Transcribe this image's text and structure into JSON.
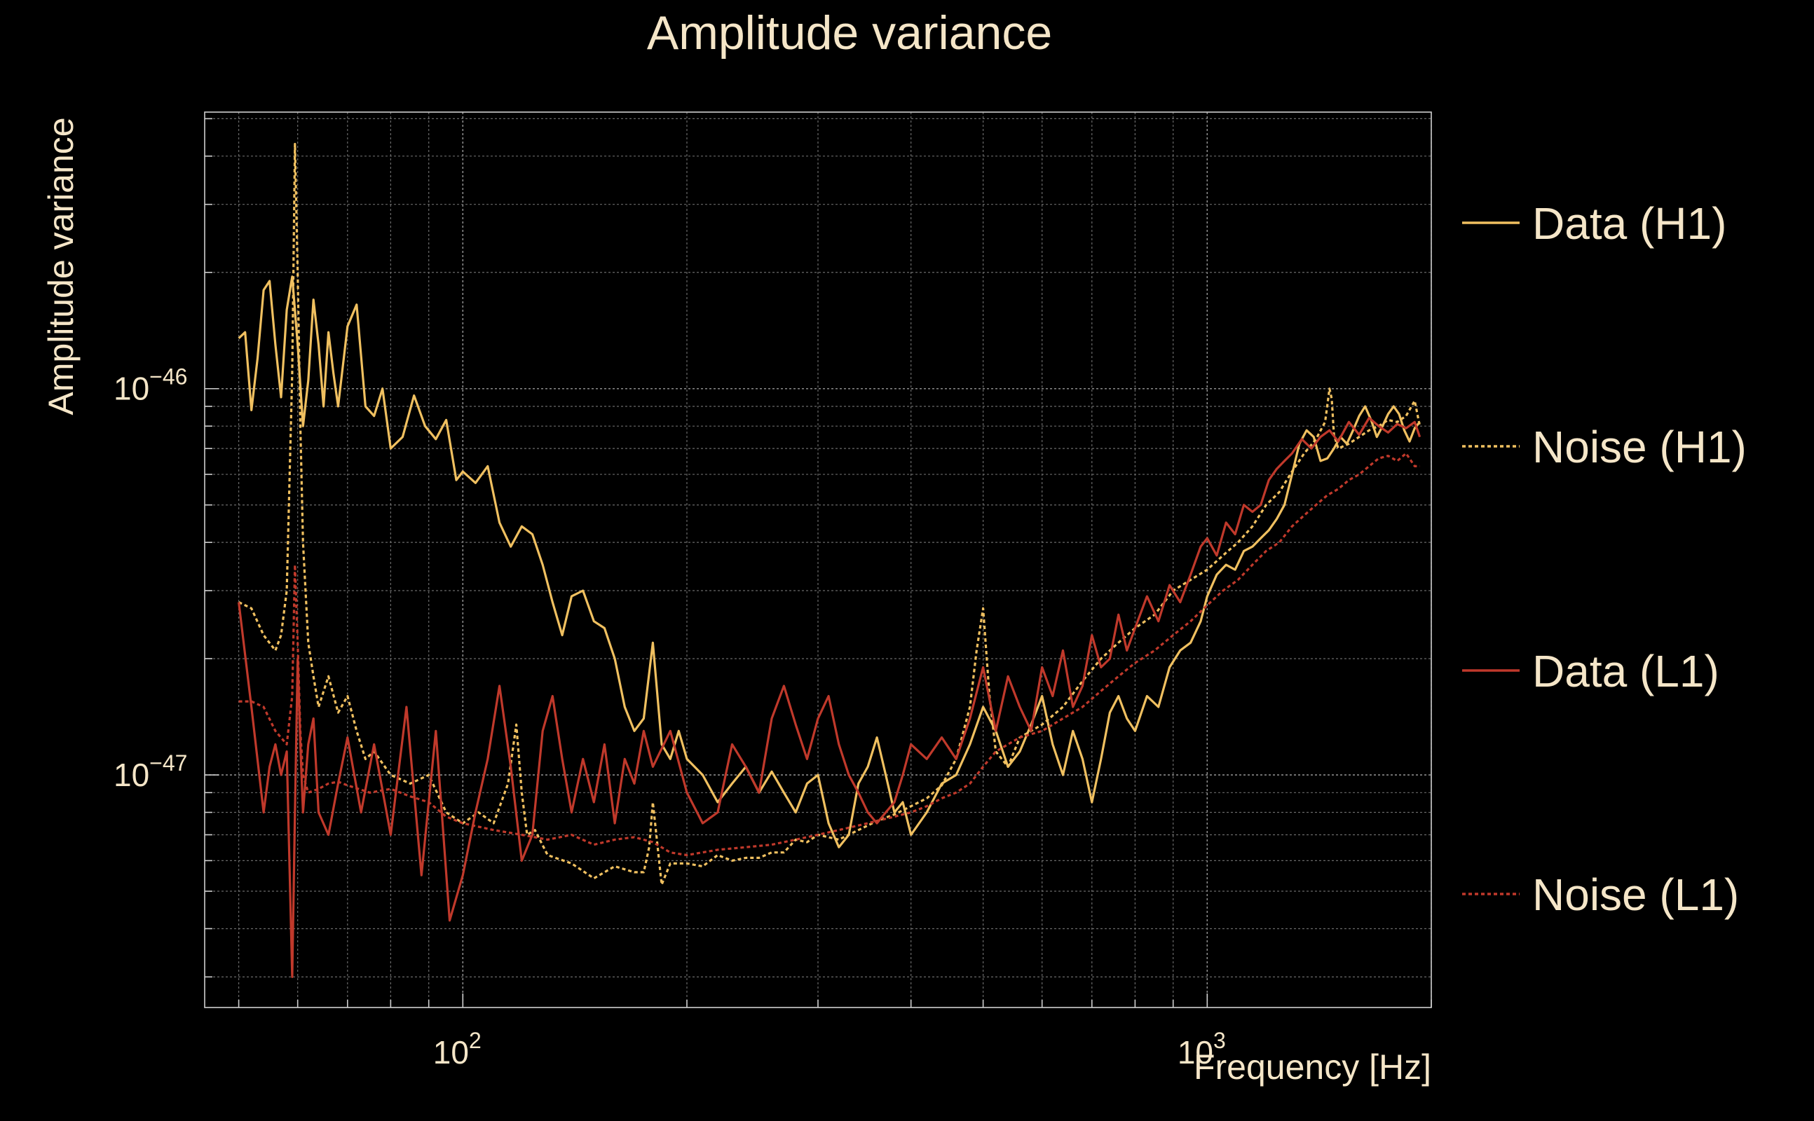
{
  "chart_data": {
    "type": "line",
    "title": "Amplitude variance",
    "xlabel": "Frequency [Hz]",
    "ylabel": "Amplitude variance",
    "x_scale": "log",
    "y_scale": "log",
    "xlim": [
      45,
      2000
    ],
    "ylim": [
      2.5e-48,
      5.2e-46
    ],
    "grid": true,
    "legend_position": "right",
    "x_ticks": [
      {
        "value": 100,
        "base": "10",
        "exp": "2"
      },
      {
        "value": 1000,
        "base": "10",
        "exp": "3"
      }
    ],
    "y_ticks": [
      {
        "value": 1e-47,
        "base": "10",
        "exp": "−47"
      },
      {
        "value": 1e-46,
        "base": "10",
        "exp": "−46"
      }
    ],
    "series": [
      {
        "name": "Data (H1)",
        "color": "#f0c060",
        "dash": "solid",
        "x": [
          50,
          51,
          52,
          53,
          54,
          55,
          56,
          57,
          58,
          59,
          60,
          61,
          62,
          63,
          64,
          65,
          66,
          67,
          68,
          70,
          72,
          74,
          76,
          78,
          80,
          83,
          86,
          89,
          92,
          95,
          98,
          100,
          104,
          108,
          112,
          116,
          120,
          124,
          128,
          132,
          136,
          140,
          145,
          150,
          155,
          160,
          165,
          170,
          175,
          180,
          185,
          190,
          195,
          200,
          210,
          220,
          230,
          240,
          250,
          260,
          270,
          280,
          290,
          300,
          310,
          320,
          330,
          340,
          350,
          360,
          370,
          380,
          390,
          400,
          420,
          440,
          460,
          480,
          500,
          520,
          540,
          560,
          580,
          600,
          620,
          640,
          660,
          680,
          700,
          720,
          740,
          760,
          780,
          800,
          830,
          860,
          890,
          920,
          950,
          980,
          1000,
          1030,
          1060,
          1090,
          1120,
          1150,
          1180,
          1210,
          1240,
          1270,
          1300,
          1330,
          1360,
          1390,
          1420,
          1450,
          1480,
          1510,
          1540,
          1570,
          1600,
          1630,
          1660,
          1690,
          1720,
          1750,
          1780,
          1810,
          1840,
          1870,
          1900,
          1930
        ],
        "y": [
          1.35e-46,
          1.4e-46,
          8.8e-47,
          1.2e-46,
          1.8e-46,
          1.9e-46,
          1.3e-46,
          9.5e-47,
          1.6e-46,
          1.95e-46,
          1.3e-46,
          8e-47,
          1.05e-46,
          1.7e-46,
          1.3e-46,
          9e-47,
          1.4e-46,
          1.1e-46,
          9e-47,
          1.45e-46,
          1.65e-46,
          9e-47,
          8.5e-47,
          1e-46,
          7e-47,
          7.5e-47,
          9.6e-47,
          8e-47,
          7.4e-47,
          8.3e-47,
          5.8e-47,
          6.1e-47,
          5.7e-47,
          6.3e-47,
          4.5e-47,
          3.9e-47,
          4.4e-47,
          4.2e-47,
          3.5e-47,
          2.8e-47,
          2.3e-47,
          2.9e-47,
          3e-47,
          2.5e-47,
          2.4e-47,
          2e-47,
          1.5e-47,
          1.3e-47,
          1.4e-47,
          2.2e-47,
          1.2e-47,
          1.1e-47,
          1.3e-47,
          1.1e-47,
          1e-47,
          8.5e-48,
          9.5e-48,
          1.05e-47,
          9e-48,
          1.02e-47,
          9e-48,
          8e-48,
          9.5e-48,
          1e-47,
          7.5e-48,
          6.5e-48,
          7e-48,
          9.5e-48,
          1.05e-47,
          1.25e-47,
          1e-47,
          8e-48,
          8.5e-48,
          7e-48,
          8e-48,
          9.5e-48,
          1e-47,
          1.2e-47,
          1.5e-47,
          1.3e-47,
          1.05e-47,
          1.15e-47,
          1.35e-47,
          1.6e-47,
          1.2e-47,
          1e-47,
          1.3e-47,
          1.1e-47,
          8.5e-48,
          1.1e-47,
          1.45e-47,
          1.6e-47,
          1.4e-47,
          1.3e-47,
          1.6e-47,
          1.5e-47,
          1.9e-47,
          2.1e-47,
          2.2e-47,
          2.5e-47,
          2.9e-47,
          3.3e-47,
          3.5e-47,
          3.4e-47,
          3.8e-47,
          3.9e-47,
          4.1e-47,
          4.3e-47,
          4.6e-47,
          5e-47,
          6e-47,
          7.2e-47,
          7.8e-47,
          7.5e-47,
          6.5e-47,
          6.6e-47,
          7e-47,
          7.5e-47,
          7.2e-47,
          7.8e-47,
          8.5e-47,
          9e-47,
          8.3e-47,
          7.5e-47,
          8e-47,
          8.6e-47,
          9e-47,
          8.6e-47,
          7.8e-47,
          7.3e-47,
          7.9e-47,
          8.2e-47
        ]
      },
      {
        "name": "Noise (H1)",
        "color": "#f0c060",
        "dash": "dotted",
        "x": [
          50,
          52,
          54,
          56,
          57,
          58,
          59,
          59.5,
          60,
          60.5,
          61,
          62,
          63,
          64,
          66,
          68,
          70,
          72,
          74,
          76,
          80,
          85,
          90,
          95,
          100,
          105,
          110,
          115,
          118,
          120,
          122,
          125,
          130,
          140,
          150,
          160,
          170,
          175,
          178,
          180,
          185,
          190,
          200,
          210,
          220,
          230,
          240,
          250,
          260,
          270,
          280,
          290,
          300,
          320,
          340,
          360,
          380,
          400,
          420,
          440,
          460,
          480,
          490,
          500,
          510,
          520,
          540,
          560,
          600,
          640,
          680,
          720,
          760,
          800,
          850,
          900,
          950,
          1000,
          1050,
          1100,
          1150,
          1200,
          1250,
          1300,
          1350,
          1400,
          1440,
          1460,
          1470,
          1480,
          1500,
          1550,
          1600,
          1650,
          1700,
          1750,
          1800,
          1850,
          1900,
          1930
        ],
        "y": [
          2.8e-47,
          2.7e-47,
          2.3e-47,
          2.1e-47,
          2.3e-47,
          3e-47,
          1.1e-46,
          4.3e-46,
          2e-46,
          8e-47,
          4e-47,
          2.2e-47,
          1.8e-47,
          1.5e-47,
          1.8e-47,
          1.45e-47,
          1.6e-47,
          1.3e-47,
          1.1e-47,
          1.15e-47,
          1e-47,
          9.5e-48,
          1e-47,
          8e-48,
          7.5e-48,
          8e-48,
          7.5e-48,
          9.5e-48,
          1.35e-47,
          9e-48,
          7e-48,
          7.2e-48,
          6.2e-48,
          5.9e-48,
          5.4e-48,
          5.8e-48,
          5.6e-48,
          5.6e-48,
          6.5e-48,
          8.5e-48,
          5.2e-48,
          5.9e-48,
          5.9e-48,
          5.8e-48,
          6.2e-48,
          6e-48,
          6.1e-48,
          6.1e-48,
          6.3e-48,
          6.3e-48,
          6.8e-48,
          6.7e-48,
          7e-48,
          6.8e-48,
          7.2e-48,
          7.6e-48,
          7.9e-48,
          8.3e-48,
          8.7e-48,
          9.4e-48,
          1.1e-47,
          1.5e-47,
          2.1e-47,
          2.7e-47,
          1.6e-47,
          1.15e-47,
          1.05e-47,
          1.25e-47,
          1.35e-47,
          1.5e-47,
          1.75e-47,
          2e-47,
          2.2e-47,
          2.4e-47,
          2.6e-47,
          3e-47,
          3.2e-47,
          3.4e-47,
          3.7e-47,
          4e-47,
          4.4e-47,
          5e-47,
          5.4e-47,
          6.1e-47,
          6.8e-47,
          7.4e-47,
          8.2e-47,
          1e-46,
          9.4e-47,
          7.6e-47,
          7e-47,
          7.2e-47,
          7.5e-47,
          7.8e-47,
          8e-47,
          8.3e-47,
          8.2e-47,
          8.5e-47,
          9.3e-47,
          8e-47
        ]
      },
      {
        "name": "Data (L1)",
        "color": "#c0392b",
        "dash": "solid",
        "x": [
          50,
          52,
          54,
          55,
          56,
          57,
          58,
          59,
          59.5,
          60,
          60.5,
          61,
          62,
          63,
          64,
          66,
          68,
          70,
          73,
          76,
          80,
          84,
          88,
          92,
          96,
          100,
          104,
          108,
          112,
          116,
          120,
          124,
          128,
          132,
          136,
          140,
          145,
          150,
          155,
          160,
          165,
          170,
          175,
          180,
          190,
          200,
          210,
          220,
          230,
          240,
          250,
          260,
          270,
          280,
          290,
          300,
          310,
          320,
          330,
          340,
          350,
          360,
          370,
          380,
          390,
          400,
          420,
          440,
          460,
          480,
          500,
          520,
          540,
          560,
          580,
          600,
          620,
          640,
          660,
          680,
          700,
          720,
          740,
          760,
          780,
          800,
          830,
          860,
          890,
          920,
          950,
          980,
          1000,
          1030,
          1060,
          1090,
          1120,
          1150,
          1180,
          1210,
          1240,
          1270,
          1300,
          1340,
          1380,
          1420,
          1460,
          1500,
          1550,
          1600,
          1650,
          1700,
          1750,
          1800,
          1850,
          1900,
          1930
        ],
        "y": [
          2.8e-47,
          1.5e-47,
          8e-48,
          1.05e-47,
          1.2e-47,
          1e-47,
          1.15e-47,
          3e-48,
          8e-48,
          2e-47,
          1.2e-47,
          8e-48,
          1.2e-47,
          1.4e-47,
          8e-48,
          7e-48,
          9.5e-48,
          1.25e-47,
          8e-48,
          1.2e-47,
          7e-48,
          1.5e-47,
          5.5e-48,
          1.3e-47,
          4.2e-48,
          5.5e-48,
          8e-48,
          1.1e-47,
          1.7e-47,
          1.05e-47,
          6e-48,
          7e-48,
          1.3e-47,
          1.6e-47,
          1.1e-47,
          8e-48,
          1.1e-47,
          8.5e-48,
          1.2e-47,
          7.5e-48,
          1.1e-47,
          9.5e-48,
          1.3e-47,
          1.05e-47,
          1.3e-47,
          9e-48,
          7.5e-48,
          8e-48,
          1.2e-47,
          1.05e-47,
          9e-48,
          1.4e-47,
          1.7e-47,
          1.35e-47,
          1.1e-47,
          1.4e-47,
          1.6e-47,
          1.2e-47,
          1e-47,
          9e-48,
          8e-48,
          7.5e-48,
          8e-48,
          8.5e-48,
          1e-47,
          1.2e-47,
          1.1e-47,
          1.25e-47,
          1.1e-47,
          1.4e-47,
          1.9e-47,
          1.3e-47,
          1.8e-47,
          1.5e-47,
          1.3e-47,
          1.9e-47,
          1.6e-47,
          2.1e-47,
          1.5e-47,
          1.7e-47,
          2.3e-47,
          1.9e-47,
          2e-47,
          2.6e-47,
          2.1e-47,
          2.4e-47,
          2.9e-47,
          2.5e-47,
          3.1e-47,
          2.8e-47,
          3.3e-47,
          3.9e-47,
          4.1e-47,
          3.7e-47,
          4.5e-47,
          4.2e-47,
          5e-47,
          4.8e-47,
          5e-47,
          5.8e-47,
          6.2e-47,
          6.5e-47,
          6.8e-47,
          7.4e-47,
          7e-47,
          7.5e-47,
          7.8e-47,
          7.3e-47,
          8.2e-47,
          7.6e-47,
          8.4e-47,
          8e-47,
          7.7e-47,
          8.1e-47,
          7.9e-47,
          8.2e-47,
          7.5e-47
        ]
      },
      {
        "name": "Noise (L1)",
        "color": "#c0392b",
        "dash": "dotted",
        "x": [
          50,
          52,
          54,
          56,
          58,
          59,
          59.5,
          60,
          60.5,
          61,
          62,
          64,
          66,
          68,
          70,
          75,
          80,
          85,
          90,
          95,
          100,
          110,
          120,
          130,
          140,
          150,
          160,
          170,
          180,
          190,
          200,
          220,
          240,
          260,
          280,
          300,
          320,
          340,
          360,
          380,
          400,
          420,
          440,
          460,
          480,
          500,
          520,
          540,
          560,
          600,
          640,
          680,
          720,
          760,
          800,
          850,
          900,
          950,
          1000,
          1050,
          1100,
          1150,
          1200,
          1250,
          1300,
          1350,
          1400,
          1450,
          1500,
          1550,
          1600,
          1650,
          1700,
          1750,
          1800,
          1850,
          1900,
          1930
        ],
        "y": [
          1.55e-47,
          1.55e-47,
          1.5e-47,
          1.3e-47,
          1.2e-47,
          1.6e-47,
          3.5e-47,
          2.2e-47,
          1.3e-47,
          1e-47,
          9e-48,
          9.2e-48,
          9.5e-48,
          9.6e-48,
          9.4e-48,
          9e-48,
          9.2e-48,
          8.8e-48,
          8.5e-48,
          7.8e-48,
          7.5e-48,
          7.2e-48,
          7e-48,
          6.8e-48,
          7e-48,
          6.6e-48,
          6.8e-48,
          6.9e-48,
          6.7e-48,
          6.3e-48,
          6.2e-48,
          6.4e-48,
          6.5e-48,
          6.6e-48,
          6.8e-48,
          7e-48,
          7.2e-48,
          7.4e-48,
          7.6e-48,
          7.8e-48,
          8e-48,
          8.3e-48,
          8.7e-48,
          9e-48,
          9.5e-48,
          1.05e-47,
          1.15e-47,
          1.2e-47,
          1.25e-47,
          1.3e-47,
          1.4e-47,
          1.5e-47,
          1.65e-47,
          1.8e-47,
          1.95e-47,
          2.1e-47,
          2.3e-47,
          2.5e-47,
          2.75e-47,
          3e-47,
          3.2e-47,
          3.5e-47,
          3.8e-47,
          4e-47,
          4.4e-47,
          4.7e-47,
          5e-47,
          5.3e-47,
          5.5e-47,
          5.8e-47,
          6e-47,
          6.3e-47,
          6.6e-47,
          6.7e-47,
          6.5e-47,
          6.8e-47,
          6.3e-47,
          6.3e-47
        ]
      }
    ]
  }
}
